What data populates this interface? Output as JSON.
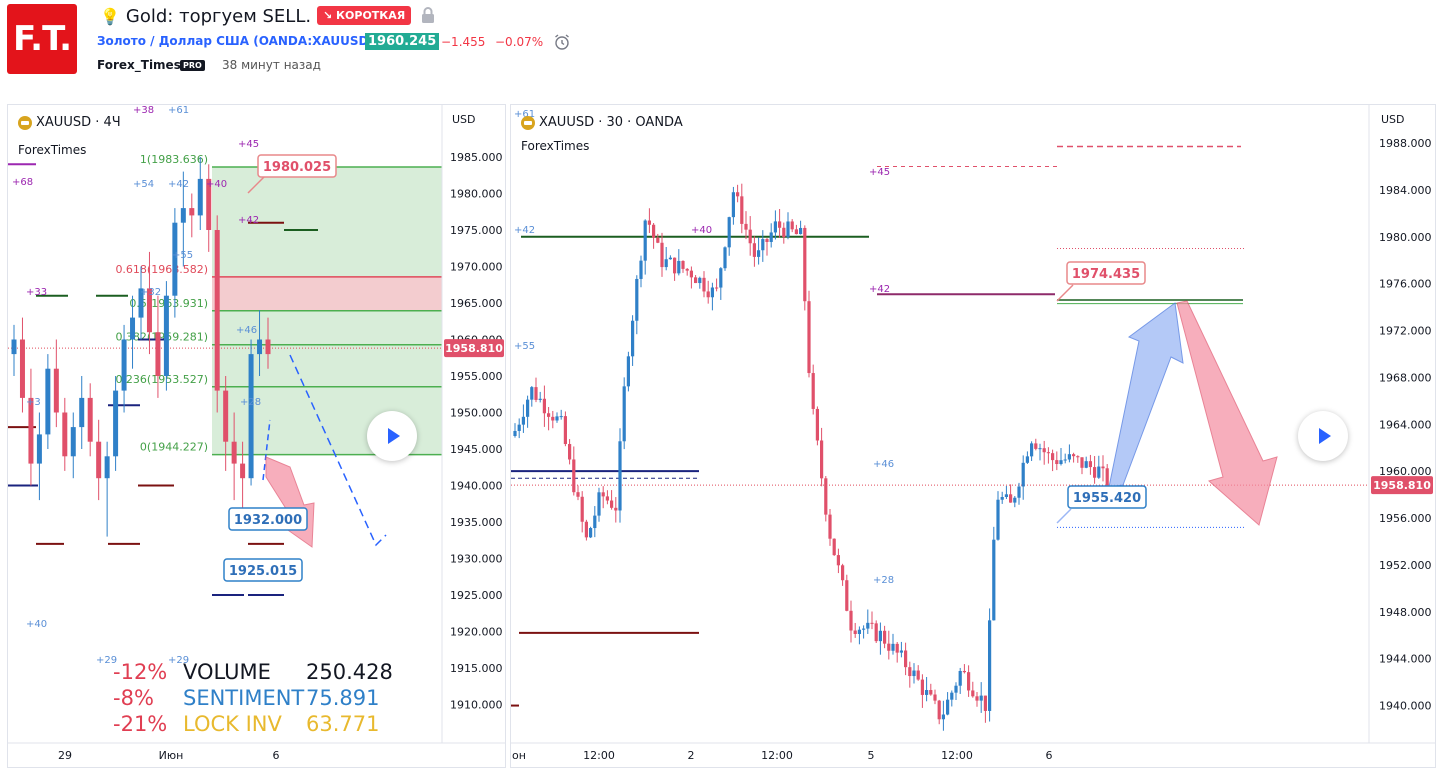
{
  "header": {
    "logo_text": "F.T.",
    "title": "Gold: торгуем SELL.",
    "badge": "↘ КОРОТКАЯ",
    "badge_color": "#f23645",
    "symbol_line": "Золото / Доллар США (OANDA:XAUUSD)",
    "price": "1960.245",
    "change": "−1.455",
    "change_pct": "−0.07%",
    "author": "Forex_Times",
    "author_badge": "PRO",
    "time_ago": "38 минут назад",
    "icons": [
      "lightbulb-icon",
      "lock-icon",
      "alarm-clock-icon"
    ]
  },
  "left_chart": {
    "title": "XAUUSD · 4Ч",
    "indicator": "ForexTimes",
    "currency": "USD",
    "current_price_label": "1958.810",
    "play_icon": "play-icon",
    "stats": [
      {
        "pct": "-12%",
        "name": "VOLUME",
        "value": "250.428",
        "color": "#131722"
      },
      {
        "pct": "-8%",
        "name": "SENTIMENT",
        "value": "75.891",
        "color": "#2f80c8"
      },
      {
        "pct": "-21%",
        "name": "LOCK INV",
        "value": "63.771",
        "color": "#e8b92e"
      }
    ]
  },
  "right_chart": {
    "title": "XAUUSD · 30 · OANDA",
    "indicator": "ForexTimes",
    "currency": "USD",
    "current_price_label": "1958.810",
    "play_icon": "play-icon"
  },
  "chart_data": [
    {
      "type": "candlestick",
      "symbol": "XAUUSD",
      "timeframe": "4Ч",
      "ylim": [
        1905,
        1990
      ],
      "y_ticks": [
        "1985.000",
        "1980.000",
        "1975.000",
        "1970.000",
        "1965.000",
        "1960.000",
        "1955.000",
        "1950.000",
        "1945.000",
        "1940.000",
        "1935.000",
        "1930.000",
        "1925.000",
        "1920.000",
        "1915.000",
        "1910.000"
      ],
      "x_ticks": [
        "29",
        "Июн",
        "6"
      ],
      "current_price": 1958.81,
      "fibonacci": [
        {
          "label": "1(1983.636)",
          "value": 1983.636
        },
        {
          "label": "0.618(1968.582)",
          "value": 1968.582
        },
        {
          "label": "0.5(1963.931)",
          "value": 1963.931
        },
        {
          "label": "0.382(1959.281)",
          "value": 1959.281
        },
        {
          "label": "0.236(1953.527)",
          "value": 1953.527
        },
        {
          "label": "0(1944.227)",
          "value": 1944.227
        }
      ],
      "price_callouts": [
        {
          "label": "1980.025",
          "value": 1980.025,
          "color": "#e8888a"
        },
        {
          "label": "1932.000",
          "value": 1932.0,
          "color": "#2f80c8"
        },
        {
          "label": "1925.015",
          "value": 1925.015,
          "color": "#2f80c8"
        }
      ],
      "level_tags": [
        "+68",
        "+38",
        "+61",
        "+54",
        "+42",
        "+40",
        "+45",
        "+42",
        "+55",
        "+33",
        "+32",
        "+46",
        "+28",
        "+3",
        "+40",
        "+29",
        "+29"
      ],
      "candles": [
        [
          1958,
          1962,
          1955,
          1960
        ],
        [
          1960,
          1963,
          1950,
          1952
        ],
        [
          1952,
          1956,
          1940,
          1943
        ],
        [
          1943,
          1950,
          1938,
          1947
        ],
        [
          1947,
          1958,
          1945,
          1956
        ],
        [
          1956,
          1960,
          1948,
          1950
        ],
        [
          1950,
          1952,
          1942,
          1944
        ],
        [
          1944,
          1950,
          1941,
          1948
        ],
        [
          1948,
          1955,
          1945,
          1952
        ],
        [
          1952,
          1954,
          1944,
          1946
        ],
        [
          1946,
          1949,
          1938,
          1941
        ],
        [
          1941,
          1946,
          1933,
          1944
        ],
        [
          1944,
          1955,
          1942,
          1953
        ],
        [
          1953,
          1962,
          1950,
          1960
        ],
        [
          1960,
          1966,
          1956,
          1963
        ],
        [
          1963,
          1970,
          1960,
          1967
        ],
        [
          1967,
          1972,
          1958,
          1961
        ],
        [
          1961,
          1966,
          1952,
          1955
        ],
        [
          1955,
          1968,
          1953,
          1966
        ],
        [
          1966,
          1978,
          1963,
          1976
        ],
        [
          1976,
          1983,
          1970,
          1978
        ],
        [
          1978,
          1980,
          1974,
          1977
        ],
        [
          1977,
          1985,
          1975,
          1982
        ],
        [
          1982,
          1984,
          1972,
          1975
        ],
        [
          1975,
          1977,
          1950,
          1953
        ],
        [
          1953,
          1955,
          1942,
          1946
        ],
        [
          1946,
          1950,
          1938,
          1943
        ],
        [
          1943,
          1946,
          1936,
          1941
        ],
        [
          1941,
          1960,
          1940,
          1958
        ],
        [
          1958,
          1964,
          1955,
          1960
        ],
        [
          1960,
          1963,
          1956,
          1958
        ]
      ]
    },
    {
      "type": "candlestick",
      "symbol": "XAUUSD",
      "timeframe": "30",
      "exchange": "OANDA",
      "ylim": [
        1937,
        1990
      ],
      "y_ticks": [
        "1988.000",
        "1984.000",
        "1980.000",
        "1976.000",
        "1972.000",
        "1968.000",
        "1964.000",
        "1960.000",
        "1956.000",
        "1952.000",
        "1948.000",
        "1944.000",
        "1940.000"
      ],
      "x_ticks": [
        "он",
        "12:00",
        "2",
        "12:00",
        "5",
        "12:00",
        "6"
      ],
      "current_price": 1958.81,
      "price_callouts": [
        {
          "label": "1974.435",
          "value": 1974.435,
          "color": "#e8888a"
        },
        {
          "label": "1955.420",
          "value": 1955.42,
          "color": "#2f80c8"
        }
      ],
      "level_tags": [
        "+61",
        "+42",
        "+40",
        "+55",
        "+45",
        "+42",
        "+46",
        "+28"
      ],
      "projection": [
        "up to 1974.435",
        "then down to ~1956"
      ]
    }
  ]
}
